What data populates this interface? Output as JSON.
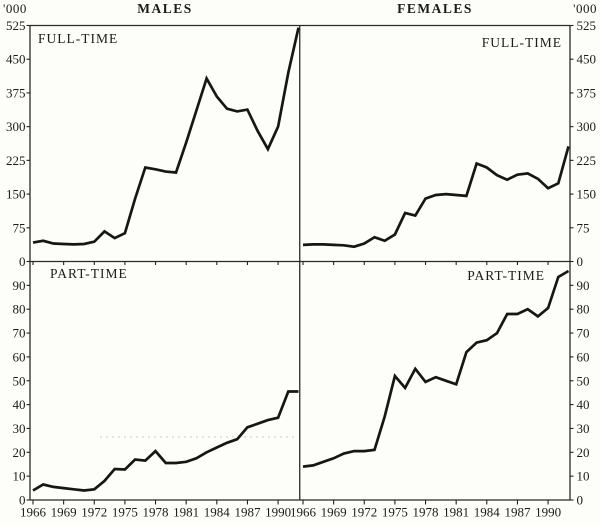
{
  "page": {
    "background": "#fdfdfa",
    "ink": "#161616",
    "axis_color": "#222222"
  },
  "header": {
    "left_units": "'000",
    "right_units": "'000",
    "left_title": "MALES",
    "right_title": "FEMALES"
  },
  "chart_data": [
    {
      "id": "males-full-time",
      "type": "line",
      "group": "MALES",
      "panel_label": "FULL-TIME",
      "position": "top-left",
      "y_axis_side": "left",
      "units": "'000",
      "grid": false,
      "xlim": [
        1966,
        1992
      ],
      "ylim": [
        0,
        525
      ],
      "yticks": [
        0,
        75,
        150,
        225,
        300,
        375,
        450,
        525
      ],
      "xticks": [
        1966,
        1969,
        1972,
        1975,
        1978,
        1981,
        1984,
        1987,
        1990
      ],
      "x_years": [
        1966,
        1967,
        1968,
        1969,
        1970,
        1971,
        1972,
        1973,
        1974,
        1975,
        1976,
        1977,
        1978,
        1979,
        1980,
        1981,
        1982,
        1983,
        1984,
        1985,
        1986,
        1987,
        1988,
        1989,
        1990,
        1991,
        1992
      ],
      "values": [
        42,
        46,
        40,
        39,
        38,
        39,
        44,
        67,
        52,
        63,
        140,
        209,
        205,
        200,
        198,
        265,
        336,
        407,
        367,
        340,
        334,
        338,
        290,
        250,
        300,
        420,
        520
      ]
    },
    {
      "id": "females-full-time",
      "type": "line",
      "group": "FEMALES",
      "panel_label": "FULL-TIME",
      "position": "top-right",
      "y_axis_side": "right",
      "units": "'000",
      "grid": false,
      "xlim": [
        1966,
        1992
      ],
      "ylim": [
        0,
        525
      ],
      "yticks": [
        0,
        75,
        150,
        225,
        300,
        375,
        450,
        525
      ],
      "xticks": [
        1966,
        1969,
        1972,
        1975,
        1978,
        1981,
        1984,
        1987,
        1990
      ],
      "x_years": [
        1966,
        1967,
        1968,
        1969,
        1970,
        1971,
        1972,
        1973,
        1974,
        1975,
        1976,
        1977,
        1978,
        1979,
        1980,
        1981,
        1982,
        1983,
        1984,
        1985,
        1986,
        1987,
        1988,
        1989,
        1990,
        1991,
        1992
      ],
      "values": [
        37,
        38,
        38,
        37,
        36,
        33,
        40,
        54,
        46,
        60,
        108,
        102,
        140,
        148,
        150,
        148,
        146,
        218,
        209,
        192,
        182,
        193,
        196,
        184,
        163,
        174,
        256
      ]
    },
    {
      "id": "males-part-time",
      "type": "line",
      "group": "MALES",
      "panel_label": "PART-TIME",
      "position": "bottom-left",
      "y_axis_side": "left",
      "units": "'000",
      "grid": false,
      "xlim": [
        1966,
        1992
      ],
      "ylim": [
        0,
        100
      ],
      "yticks": [
        0,
        10,
        20,
        30,
        40,
        50,
        60,
        70,
        80,
        90
      ],
      "xticks": [
        1966,
        1969,
        1972,
        1975,
        1978,
        1981,
        1984,
        1987,
        1990
      ],
      "x_years": [
        1966,
        1967,
        1968,
        1969,
        1970,
        1971,
        1972,
        1973,
        1974,
        1975,
        1976,
        1977,
        1978,
        1979,
        1980,
        1981,
        1982,
        1983,
        1984,
        1985,
        1986,
        1987,
        1988,
        1989,
        1990,
        1991,
        1992
      ],
      "values": [
        4,
        6.5,
        5.5,
        5,
        4.5,
        4,
        4.5,
        8,
        13,
        12.8,
        17,
        16.5,
        20.5,
        15.5,
        15.5,
        16,
        17.5,
        20,
        22,
        24,
        25.5,
        30.5,
        32,
        33.5,
        34.5,
        45.5,
        45.5
      ]
    },
    {
      "id": "females-part-time",
      "type": "line",
      "group": "FEMALES",
      "panel_label": "PART-TIME",
      "position": "bottom-right",
      "y_axis_side": "right",
      "units": "'000",
      "grid": false,
      "xlim": [
        1966,
        1992
      ],
      "ylim": [
        0,
        100
      ],
      "yticks": [
        0,
        10,
        20,
        30,
        40,
        50,
        60,
        70,
        80,
        90
      ],
      "xticks": [
        1966,
        1969,
        1972,
        1975,
        1978,
        1981,
        1984,
        1987,
        1990
      ],
      "x_years": [
        1966,
        1967,
        1968,
        1969,
        1970,
        1971,
        1972,
        1973,
        1974,
        1975,
        1976,
        1977,
        1978,
        1979,
        1980,
        1981,
        1982,
        1983,
        1984,
        1985,
        1986,
        1987,
        1988,
        1989,
        1990,
        1991,
        1992
      ],
      "values": [
        14,
        14.5,
        16,
        17.5,
        19.5,
        20.5,
        20.5,
        21,
        35,
        52,
        47,
        55,
        49.5,
        51.5,
        50,
        48.5,
        62,
        66,
        67,
        70,
        78,
        78,
        80,
        77,
        80.5,
        93.5,
        96
      ]
    }
  ]
}
